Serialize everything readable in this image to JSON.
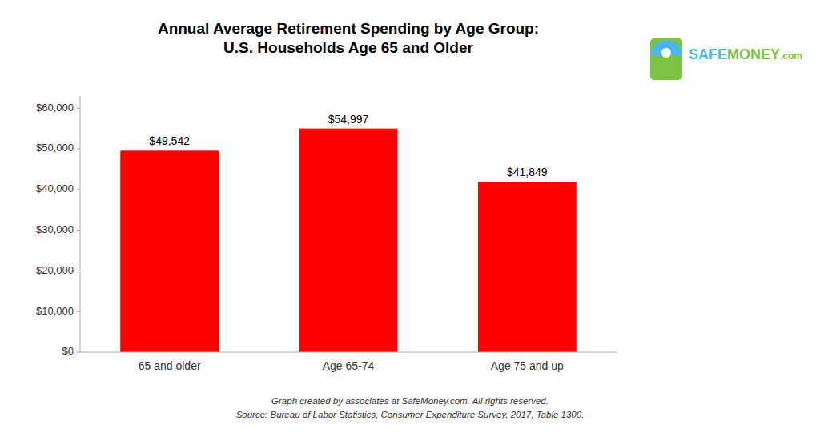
{
  "chart_data": {
    "type": "bar",
    "title": "Annual Average Retirement Spending by Age Group:",
    "subtitle": "U.S. Households Age 65 and Older",
    "categories": [
      "65 and older",
      "Age 65-74",
      "Age 75 and up"
    ],
    "values": [
      49542,
      54997,
      41849
    ],
    "value_labels": [
      "$49,542",
      "$54,997",
      "$41,849"
    ],
    "data_labels": true,
    "color": "#FF0000",
    "ylim": [
      0,
      63000
    ],
    "yticks": [
      {
        "value": 0,
        "label": "$0"
      },
      {
        "value": 10000,
        "label": "$10,000"
      },
      {
        "value": 20000,
        "label": "$20,000"
      },
      {
        "value": 30000,
        "label": "$30,000"
      },
      {
        "value": 40000,
        "label": "$40,000"
      },
      {
        "value": 50000,
        "label": "$50,000"
      },
      {
        "value": 60000,
        "label": "$60,000"
      }
    ],
    "grid": false,
    "annotations": [
      "Graph created by associates at SafeMoney.com.  All rights reserved.",
      "Source: Bureau of Labor Statistics, Consumer Expenditure Survey, 2017, Table 1300.",
      "SAFEMONEY.com"
    ]
  }
}
